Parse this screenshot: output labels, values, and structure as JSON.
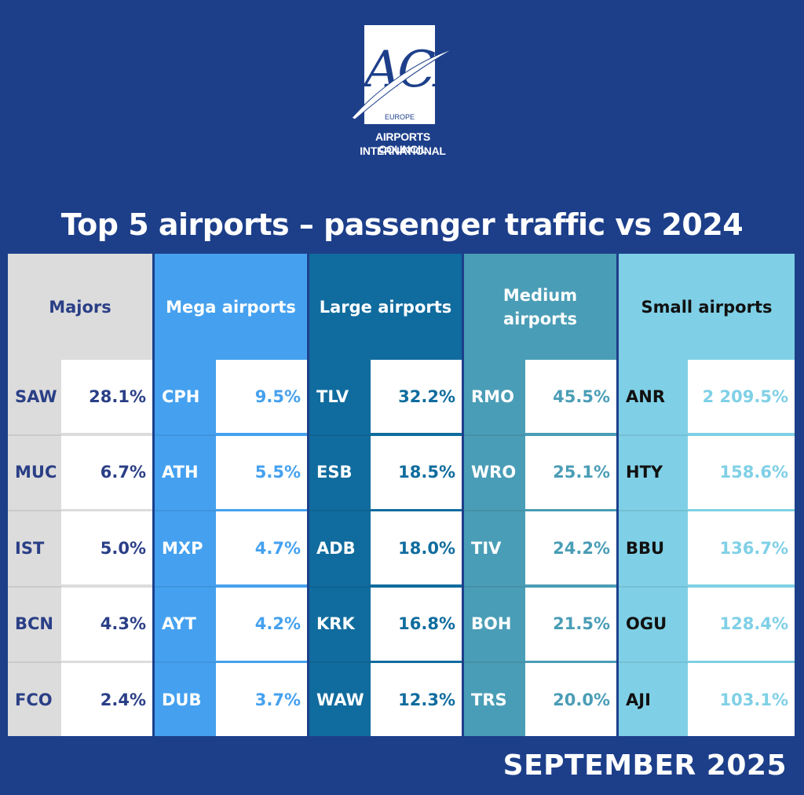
{
  "logo": {
    "letters": "ACI",
    "region": "EUROPE",
    "line1": "AIRPORTS COUNCIL",
    "line2": "INTERNATIONAL"
  },
  "title": "Top 5 airports – passenger traffic vs 2024",
  "footer": "SEPTEMBER 2025",
  "colors": {
    "background": "#1d3f8a",
    "majors": "#dcdcdc",
    "mega": "#45a1ef",
    "large": "#106c9e",
    "medium": "#4a9db6",
    "small": "#7fd0e6"
  },
  "chart_data": {
    "type": "table",
    "columns": [
      {
        "header": "Majors",
        "rows": [
          {
            "airport": "SAW",
            "value": "28.1%"
          },
          {
            "airport": "MUC",
            "value": "6.7%"
          },
          {
            "airport": "IST",
            "value": "5.0%"
          },
          {
            "airport": "BCN",
            "value": "4.3%"
          },
          {
            "airport": "FCO",
            "value": "2.4%"
          }
        ]
      },
      {
        "header": "Mega airports",
        "rows": [
          {
            "airport": "CPH",
            "value": "9.5%"
          },
          {
            "airport": "ATH",
            "value": "5.5%"
          },
          {
            "airport": "MXP",
            "value": "4.7%"
          },
          {
            "airport": "AYT",
            "value": "4.2%"
          },
          {
            "airport": "DUB",
            "value": "3.7%"
          }
        ]
      },
      {
        "header": "Large airports",
        "rows": [
          {
            "airport": "TLV",
            "value": "32.2%"
          },
          {
            "airport": "ESB",
            "value": "18.5%"
          },
          {
            "airport": "ADB",
            "value": "18.0%"
          },
          {
            "airport": "KRK",
            "value": "16.8%"
          },
          {
            "airport": "WAW",
            "value": "12.3%"
          }
        ]
      },
      {
        "header": "Medium airports",
        "rows": [
          {
            "airport": "RMO",
            "value": "45.5%"
          },
          {
            "airport": "WRO",
            "value": "25.1%"
          },
          {
            "airport": "TIV",
            "value": "24.2%"
          },
          {
            "airport": "BOH",
            "value": "21.5%"
          },
          {
            "airport": "TRS",
            "value": "20.0%"
          }
        ]
      },
      {
        "header": "Small airports",
        "rows": [
          {
            "airport": "ANR",
            "value": "2 209.5%"
          },
          {
            "airport": "HTY",
            "value": "158.6%"
          },
          {
            "airport": "BBU",
            "value": "136.7%"
          },
          {
            "airport": "OGU",
            "value": "128.4%"
          },
          {
            "airport": "AJI",
            "value": "103.1%"
          }
        ]
      }
    ]
  }
}
